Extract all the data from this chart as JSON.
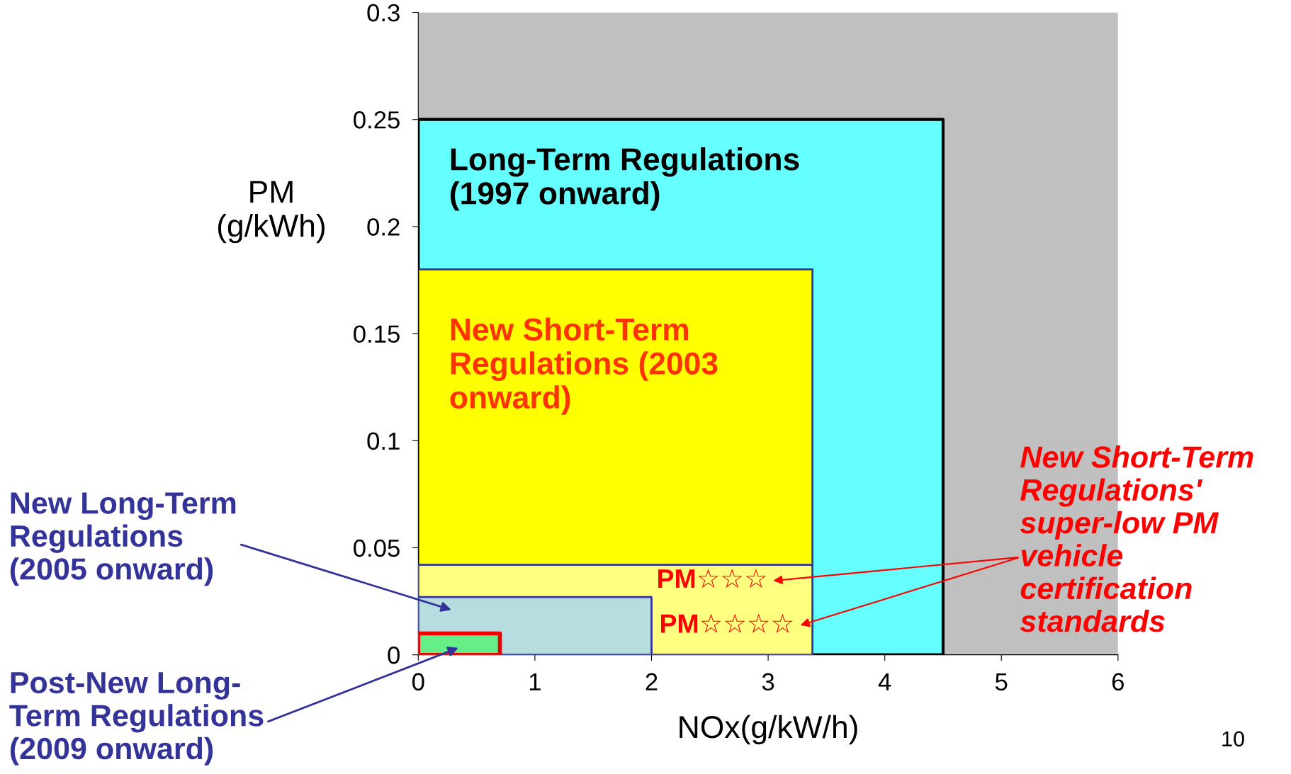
{
  "chart_data": {
    "type": "area",
    "xlabel": "NOx(g/kW/h)",
    "ylabel": "PM\n(g/kWh)",
    "xlim": [
      0,
      6
    ],
    "xticks": [
      0,
      1,
      2,
      3,
      4,
      5,
      6
    ],
    "ylim": [
      0,
      0.3
    ],
    "yticks": [
      0,
      0.05,
      0.1,
      0.15,
      0.2,
      0.25,
      0.3
    ],
    "grid": false,
    "legend": false,
    "bands": [
      {
        "axis": "x",
        "from": 0,
        "to": 6,
        "color": "#c0c0c0"
      }
    ],
    "series": [
      {
        "color": "#66ffff",
        "x": [
          0,
          4.5
        ],
        "values": [
          0.25,
          0.25
        ]
      },
      {
        "color": "#ffff00",
        "x": [
          0,
          3.38
        ],
        "values": [
          0.18,
          0.18
        ]
      },
      {
        "color": "#ffff80",
        "x": [
          0,
          3.38
        ],
        "values": [
          0.042,
          0.042
        ]
      },
      {
        "color": "#b8dde0",
        "x": [
          0,
          2.0
        ],
        "values": [
          0.027,
          0.027
        ]
      },
      {
        "color": "#66ee88",
        "x": [
          0,
          0.7
        ],
        "values": [
          0.01,
          0.01
        ]
      }
    ],
    "annotations": [
      "Long-Term Regulations\n(1997 onward)",
      "New Short-Term\nRegulations (2003\nonward)",
      "PM☆☆☆",
      "PM☆☆☆☆",
      "New Long-Term\nRegulations\n(2005 onward)",
      "Post-New Long-\nTerm Regulations\n(2009 onward)",
      "New Short-Term\nRegulations'\nsuper-low PM\nvehicle\ncertification\nstandards",
      "10"
    ]
  }
}
